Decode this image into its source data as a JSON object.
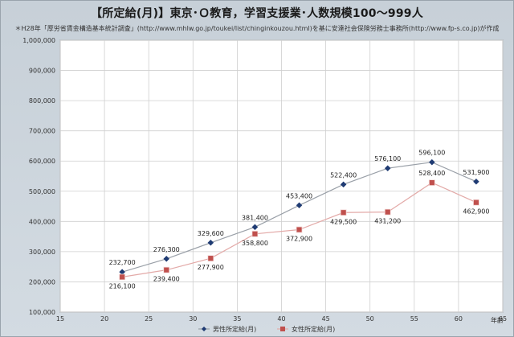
{
  "title": "【所定給(月)】東京･Ｏ教育，学習支援業･人数規模100～999人",
  "subtitle": "＊H28年「厚労省賃金構造基本統計調査」(http://www.mhlw.go.jp/toukei/list/chinginkouzou.html)を基に安達社会保険労務士事務所(http://www.fp-s.co.jp)が作成",
  "chart_data": {
    "type": "line",
    "x": [
      22,
      27,
      32,
      37,
      42,
      47,
      52,
      57,
      62
    ],
    "xlim": [
      15,
      65
    ],
    "xticks": [
      15,
      20,
      25,
      30,
      35,
      40,
      45,
      50,
      55,
      60,
      65
    ],
    "xticklabels": [
      "15",
      "20",
      "25",
      "30",
      "35",
      "40",
      "45",
      "50",
      "55",
      "60",
      "65"
    ],
    "ylim": [
      100000,
      1000000
    ],
    "yticks": [
      100000,
      200000,
      300000,
      400000,
      500000,
      600000,
      700000,
      800000,
      900000,
      1000000
    ],
    "yticklabels": [
      "100,000",
      "200,000",
      "300,000",
      "400,000",
      "500,000",
      "600,000",
      "700,000",
      "800,000",
      "900,000",
      "1,000,000"
    ],
    "xlabel": "年齢",
    "ylabel": "",
    "grid": true,
    "legend_position": "bottom",
    "series": [
      {
        "name": "男性所定給(月)",
        "color": "#1f3b73",
        "line_color": "#9aa0a8",
        "marker": "diamond",
        "values": [
          232700,
          276300,
          329600,
          381400,
          453400,
          522400,
          576100,
          596100,
          531900
        ],
        "labels": [
          "232,700",
          "276,300",
          "329,600",
          "381,400",
          "453,400",
          "522,400",
          "576,100",
          "596,100",
          "531,900"
        ]
      },
      {
        "name": "女性所定給(月)",
        "color": "#c0504d",
        "line_color": "#e3aaa8",
        "marker": "square",
        "values": [
          216100,
          239400,
          277900,
          358800,
          372900,
          429500,
          431200,
          528400,
          462900
        ],
        "labels": [
          "216,100",
          "239,400",
          "277,900",
          "358,800",
          "372,900",
          "429,500",
          "431,200",
          "528,400",
          "462,900"
        ]
      }
    ]
  }
}
